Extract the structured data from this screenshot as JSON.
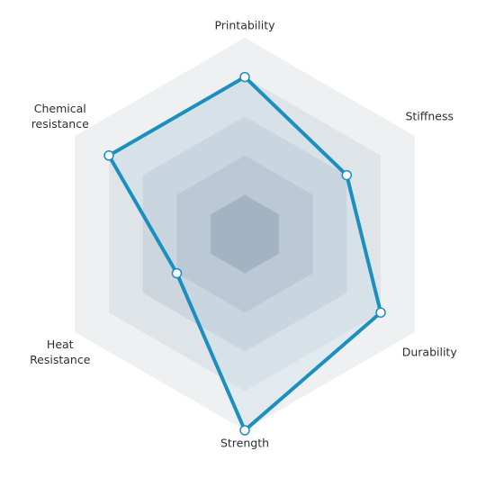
{
  "chart_data": {
    "type": "radar",
    "categories": [
      "Printability",
      "Stiffness",
      "Durability",
      "Strength",
      "Heat Resistance",
      "Chemical resistance"
    ],
    "values": [
      4,
      3,
      4,
      5,
      2,
      4
    ],
    "color": "#1b8fbf",
    "rlim": [
      0,
      5
    ],
    "rticks": [
      1,
      2,
      3,
      4,
      5
    ]
  }
}
